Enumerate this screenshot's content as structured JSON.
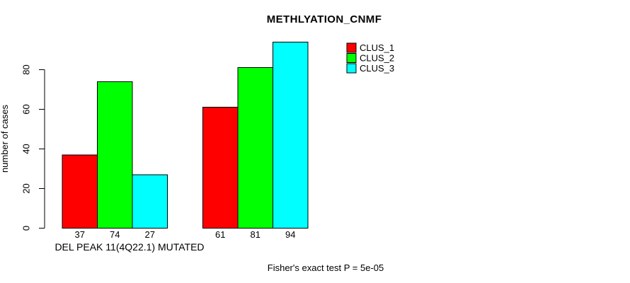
{
  "chart_data": {
    "type": "bar",
    "title": "METHLYATION_CNMF",
    "ylabel": "number of cases",
    "xlabel": "DEL PEAK 11(4Q22.1) MUTATED",
    "annotation": "Fisher's exact test P = 5e-05",
    "yticks": [
      0,
      20,
      40,
      60,
      80
    ],
    "ylim": [
      0,
      94
    ],
    "grid": false,
    "legend_position": "top-right",
    "show_bar_values": true,
    "num_groups": 2,
    "series": [
      {
        "name": "CLUS_1",
        "color": "#ff0000",
        "values": [
          37,
          61
        ]
      },
      {
        "name": "CLUS_2",
        "color": "#00ff00",
        "values": [
          74,
          81
        ]
      },
      {
        "name": "CLUS_3",
        "color": "#00ffff",
        "values": [
          27,
          94
        ]
      }
    ],
    "colors": {
      "axis": "#000000",
      "bar_border": "#000000",
      "text": "#000000",
      "background": "#ffffff"
    }
  }
}
